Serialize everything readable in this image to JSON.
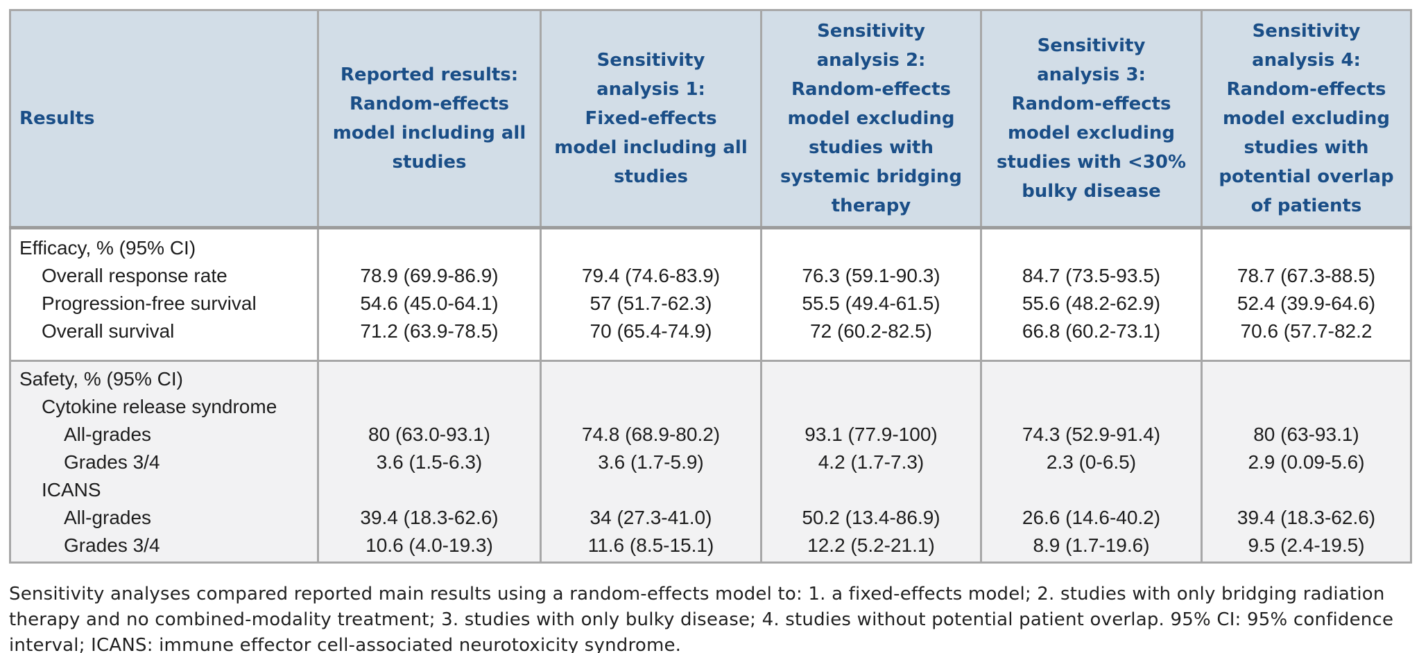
{
  "table": {
    "columns": [
      {
        "label": "Results"
      },
      {
        "label": "Reported results:\nRandom-effects\nmodel including all\nstudies"
      },
      {
        "label": "Sensitivity\nanalysis 1:\nFixed-effects\nmodel including all\nstudies"
      },
      {
        "label": "Sensitivity\nanalysis 2:\nRandom-effects\nmodel excluding\nstudies with\nsystemic bridging\ntherapy"
      },
      {
        "label": "Sensitivity\nanalysis 3:\nRandom-effects\nmodel excluding\nstudies with <30%\nbulky disease"
      },
      {
        "label": "Sensitivity\nanalysis 4:\nRandom-effects\nmodel excluding\nstudies with\npotential overlap\nof patients"
      }
    ],
    "sections": [
      {
        "name": "efficacy",
        "rows": [
          {
            "label": "Efficacy, % (95% CI)",
            "indent": 0,
            "values": [
              "",
              "",
              "",
              "",
              ""
            ]
          },
          {
            "label": "Overall response rate",
            "indent": 1,
            "values": [
              "78.9 (69.9-86.9)",
              "79.4 (74.6-83.9)",
              "76.3 (59.1-90.3)",
              "84.7 (73.5-93.5)",
              "78.7 (67.3-88.5)"
            ]
          },
          {
            "label": "Progression-free survival",
            "indent": 1,
            "values": [
              "54.6 (45.0-64.1)",
              "57 (51.7-62.3)",
              "55.5 (49.4-61.5)",
              "55.6 (48.2-62.9)",
              "52.4 (39.9-64.6)"
            ]
          },
          {
            "label": "Overall survival",
            "indent": 1,
            "values": [
              "71.2 (63.9-78.5)",
              "70 (65.4-74.9)",
              "72 (60.2-82.5)",
              "66.8 (60.2-73.1)",
              "70.6 (57.7-82.2"
            ]
          }
        ]
      },
      {
        "name": "safety",
        "rows": [
          {
            "label": "Safety, % (95% CI)",
            "indent": 0,
            "values": [
              "",
              "",
              "",
              "",
              ""
            ]
          },
          {
            "label": "Cytokine release syndrome",
            "indent": 1,
            "values": [
              "",
              "",
              "",
              "",
              ""
            ]
          },
          {
            "label": "All-grades",
            "indent": 2,
            "values": [
              "80 (63.0-93.1)",
              "74.8 (68.9-80.2)",
              "93.1 (77.9-100)",
              "74.3 (52.9-91.4)",
              "80 (63-93.1)"
            ]
          },
          {
            "label": "Grades 3/4",
            "indent": 2,
            "values": [
              "3.6 (1.5-6.3)",
              "3.6 (1.7-5.9)",
              "4.2 (1.7-7.3)",
              "2.3 (0-6.5)",
              "2.9 (0.09-5.6)"
            ]
          },
          {
            "label": "ICANS",
            "indent": 1,
            "values": [
              "",
              "",
              "",
              "",
              ""
            ]
          },
          {
            "label": "All-grades",
            "indent": 2,
            "values": [
              "39.4 (18.3-62.6)",
              "34 (27.3-41.0)",
              "50.2 (13.4-86.9)",
              "26.6 (14.6-40.2)",
              "39.4 (18.3-62.6)"
            ]
          },
          {
            "label": "Grades 3/4",
            "indent": 2,
            "values": [
              "10.6 (4.0-19.3)",
              "11.6 (8.5-15.1)",
              "12.2 (5.2-21.1)",
              "8.9 (1.7-19.6)",
              "9.5 (2.4-19.5)"
            ]
          }
        ]
      }
    ]
  },
  "footnote": "Sensitivity analyses compared reported main results using a random-effects model to: 1. a fixed-effects model; 2. studies with only bridging radiation therapy and no combined-modality treatment; 3. studies with only bulky disease; 4. studies without potential patient overlap. 95% CI: 95% confidence interval; ICANS: immune effector cell-associated neurotoxicity syndrome.",
  "colors": {
    "header_bg": "#d2dde7",
    "header_text": "#1a4e87",
    "safety_row_bg": "#f2f2f3",
    "border": "#a7a7a7"
  }
}
